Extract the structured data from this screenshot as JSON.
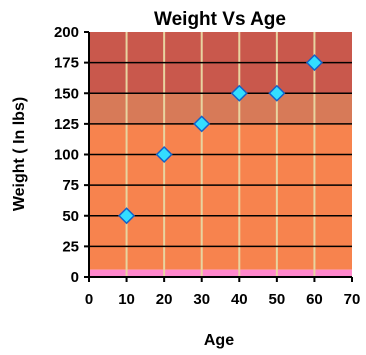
{
  "chart_data": {
    "type": "scatter",
    "title": "Weight Vs Age",
    "xlabel": "Age",
    "ylabel": "Weight ( In lbs)",
    "xlim": [
      0,
      70
    ],
    "ylim": [
      0,
      200
    ],
    "x_ticks": [
      "0",
      "10",
      "20",
      "30",
      "40",
      "50",
      "60",
      "70"
    ],
    "y_ticks": [
      "0",
      "25",
      "50",
      "75",
      "100",
      "125",
      "150",
      "175",
      "200"
    ],
    "grid": true,
    "legend": "none",
    "series": [
      {
        "x": [
          10,
          20,
          30,
          40,
          50,
          60
        ],
        "y": [
          50,
          100,
          125,
          150,
          150,
          175
        ]
      }
    ],
    "colors": {
      "marker_fill": "#33ddff",
      "marker_stroke": "#1560c8",
      "band_top": "#c9584c",
      "band_mid": "#d77a58",
      "band_low": "#f7834e",
      "band_base": "#ff88cc",
      "vertical_grid": "#e8d4a0",
      "horizontal_grid": "#000000"
    }
  }
}
